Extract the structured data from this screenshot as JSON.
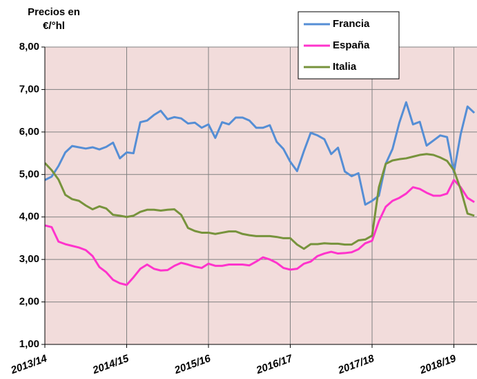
{
  "chart_data": {
    "type": "line",
    "y_label": [
      "Precios en",
      "€/°hl"
    ],
    "categories": [
      "2013/14",
      null,
      null,
      null,
      null,
      null,
      null,
      null,
      null,
      null,
      null,
      null,
      "2014/15",
      null,
      null,
      null,
      null,
      null,
      null,
      null,
      null,
      null,
      null,
      null,
      "2015/16",
      null,
      null,
      null,
      null,
      null,
      null,
      null,
      null,
      null,
      null,
      null,
      "2016/17",
      null,
      null,
      null,
      null,
      null,
      null,
      null,
      null,
      null,
      null,
      null,
      "2017/18",
      null,
      null,
      null,
      null,
      null,
      null,
      null,
      null,
      null,
      null,
      null,
      "2018/19",
      null,
      null,
      null
    ],
    "series": [
      {
        "name": "Francia",
        "color": "#558ed5",
        "values": [
          4.87,
          4.95,
          5.2,
          5.52,
          5.67,
          5.64,
          5.61,
          5.64,
          5.59,
          5.65,
          5.75,
          5.38,
          5.52,
          5.5,
          6.23,
          6.27,
          6.4,
          6.5,
          6.3,
          6.35,
          6.32,
          6.2,
          6.22,
          6.1,
          6.18,
          5.86,
          6.23,
          6.18,
          6.34,
          6.34,
          6.27,
          6.1,
          6.1,
          6.16,
          5.77,
          5.6,
          5.3,
          5.08,
          5.55,
          5.98,
          5.92,
          5.83,
          5.48,
          5.63,
          5.07,
          4.96,
          5.03,
          4.29,
          4.38,
          4.5,
          5.25,
          5.6,
          6.22,
          6.7,
          6.18,
          6.24,
          5.68,
          5.8,
          5.92,
          5.88,
          5.05,
          5.95,
          6.6,
          6.45
        ]
      },
      {
        "name": "España",
        "color": "#ff33cc",
        "values": [
          3.8,
          3.76,
          3.42,
          3.36,
          3.32,
          3.28,
          3.22,
          3.08,
          2.82,
          2.7,
          2.52,
          2.44,
          2.4,
          2.58,
          2.78,
          2.88,
          2.78,
          2.74,
          2.75,
          2.85,
          2.92,
          2.88,
          2.83,
          2.8,
          2.9,
          2.85,
          2.85,
          2.88,
          2.88,
          2.88,
          2.86,
          2.95,
          3.05,
          3.0,
          2.92,
          2.8,
          2.76,
          2.78,
          2.9,
          2.95,
          3.08,
          3.14,
          3.18,
          3.14,
          3.15,
          3.17,
          3.24,
          3.38,
          3.44,
          3.9,
          4.24,
          4.38,
          4.45,
          4.55,
          4.7,
          4.66,
          4.57,
          4.5,
          4.5,
          4.55,
          4.87,
          4.7,
          4.45,
          4.35
        ]
      },
      {
        "name": "Italia",
        "color": "#77933c",
        "values": [
          5.27,
          5.1,
          4.88,
          4.52,
          4.42,
          4.38,
          4.27,
          4.18,
          4.25,
          4.2,
          4.05,
          4.03,
          4.0,
          4.03,
          4.12,
          4.17,
          4.17,
          4.15,
          4.17,
          4.18,
          4.05,
          3.74,
          3.67,
          3.63,
          3.63,
          3.6,
          3.63,
          3.66,
          3.66,
          3.6,
          3.57,
          3.55,
          3.55,
          3.55,
          3.53,
          3.5,
          3.5,
          3.35,
          3.25,
          3.36,
          3.36,
          3.38,
          3.37,
          3.37,
          3.35,
          3.35,
          3.45,
          3.47,
          3.56,
          4.7,
          5.25,
          5.33,
          5.36,
          5.38,
          5.42,
          5.46,
          5.48,
          5.46,
          5.4,
          5.32,
          5.1,
          4.65,
          4.08,
          4.03
        ]
      }
    ],
    "ylim": [
      1,
      8
    ],
    "yticks": [
      {
        "value": 1,
        "label": "1,00"
      },
      {
        "value": 2,
        "label": "2,00"
      },
      {
        "value": 3,
        "label": "3,00"
      },
      {
        "value": 4,
        "label": "4,00"
      },
      {
        "value": 5,
        "label": "5,00"
      },
      {
        "value": 6,
        "label": "6,00"
      },
      {
        "value": 7,
        "label": "7,00"
      },
      {
        "value": 8,
        "label": "8,00"
      }
    ],
    "grid": true,
    "legend": "top-right"
  }
}
